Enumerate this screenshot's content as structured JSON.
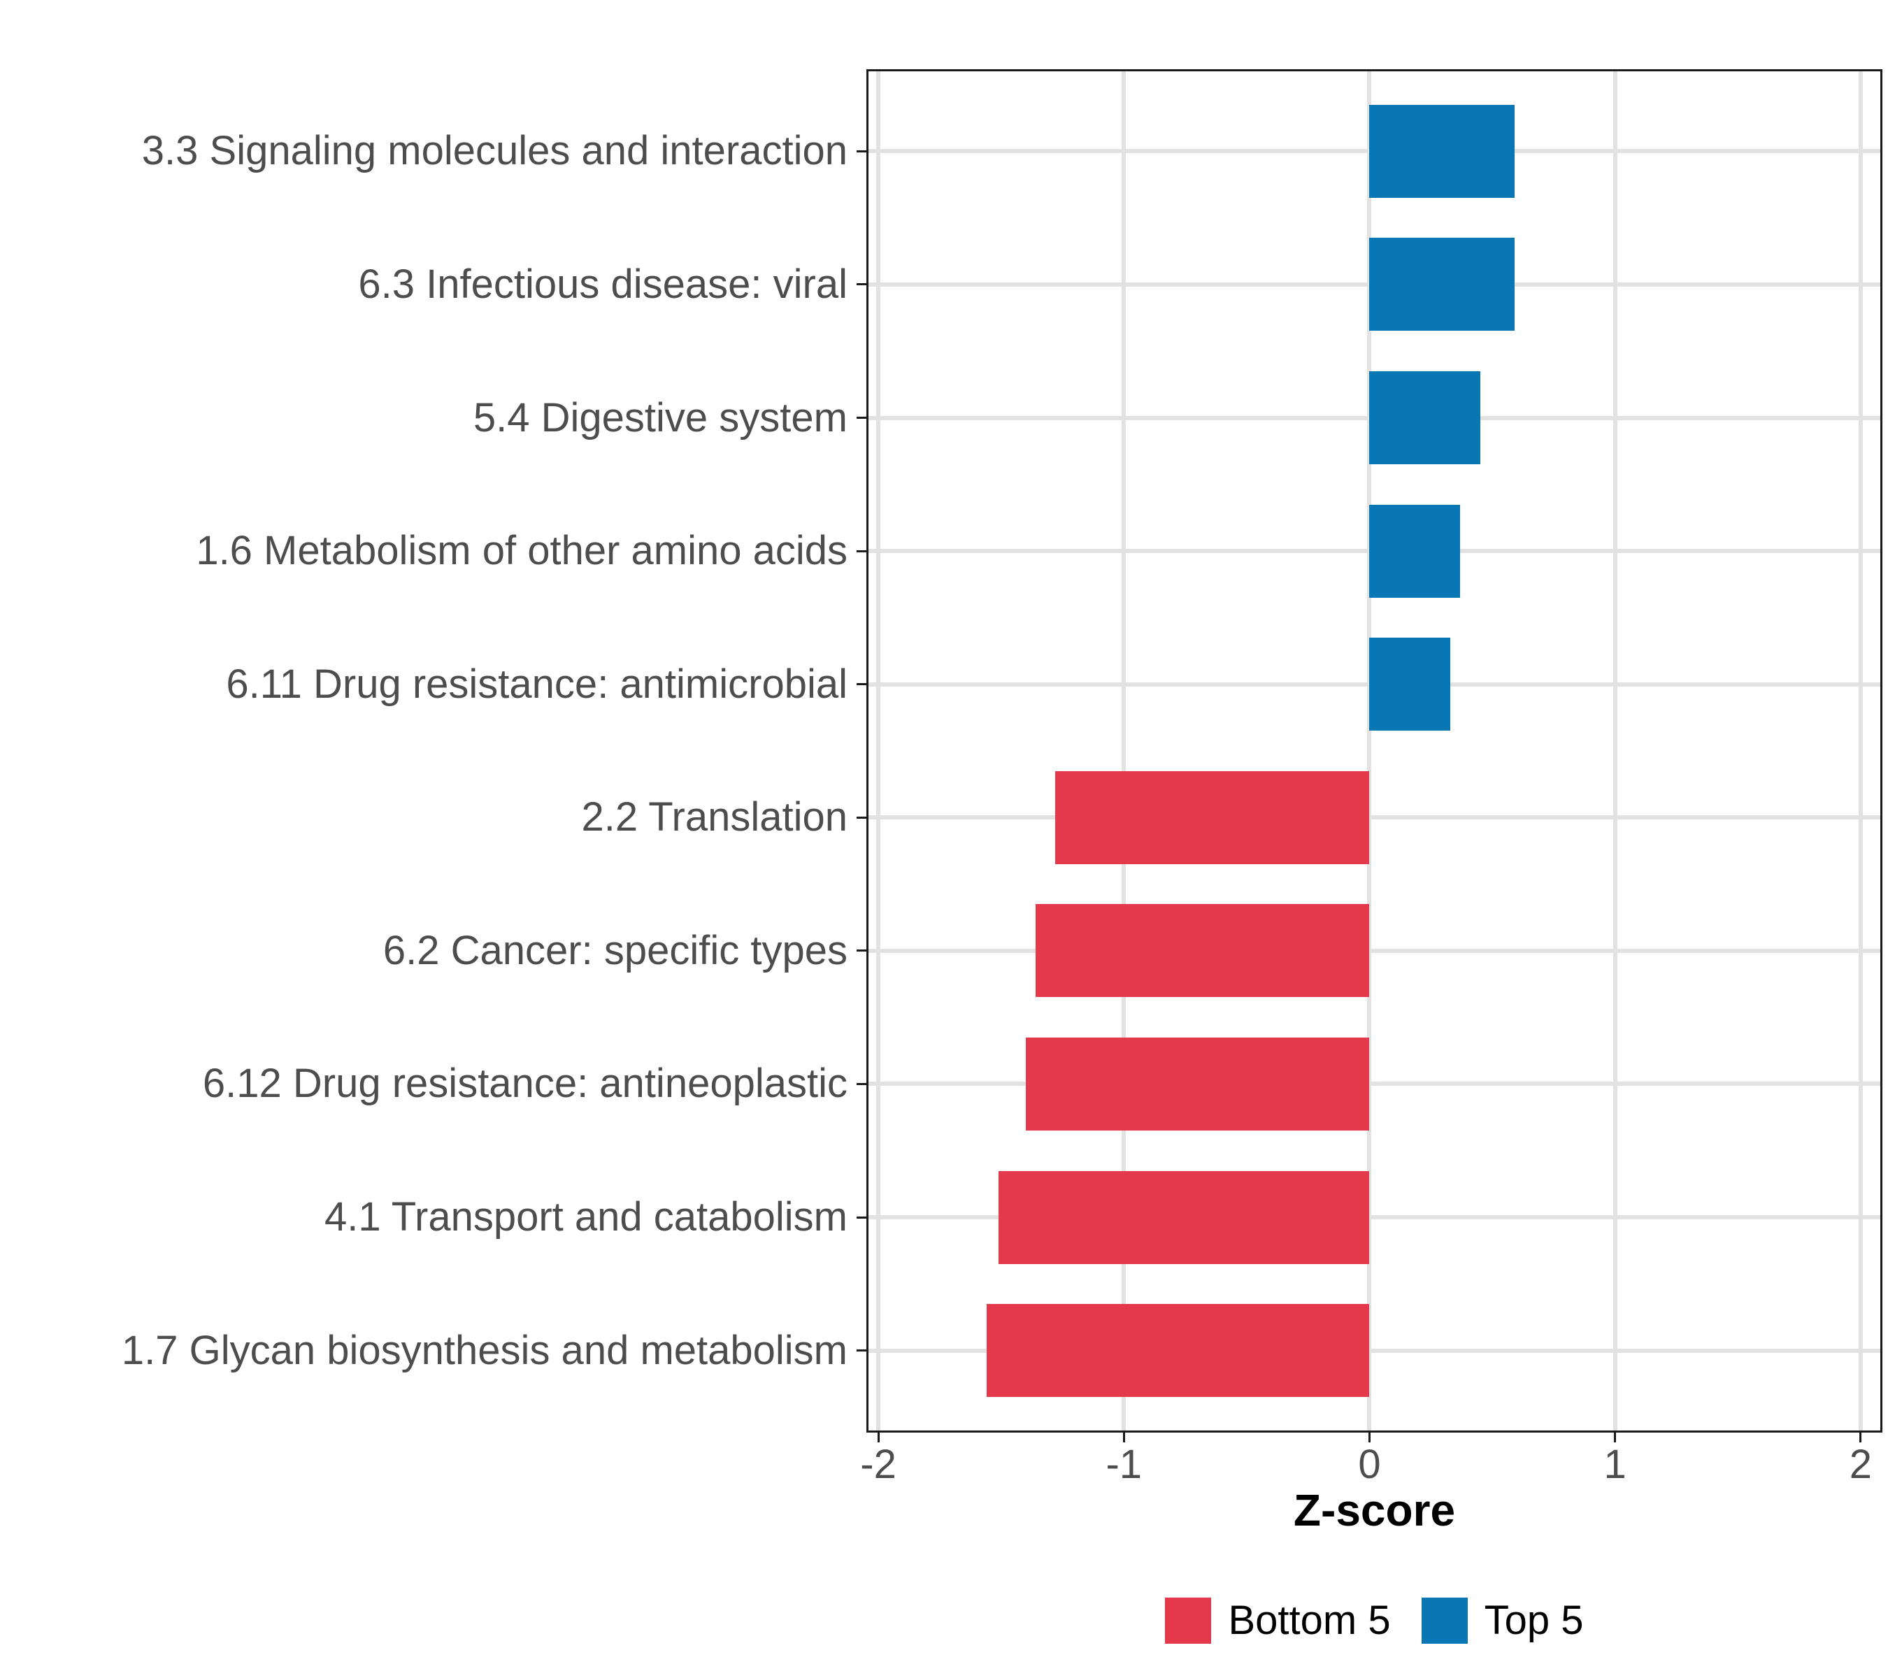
{
  "chart_data": {
    "type": "bar",
    "orientation": "horizontal",
    "title": "",
    "xlabel": "Z-score",
    "x_ticks": [
      -2,
      -1,
      0,
      1,
      2
    ],
    "xlim": [
      -2.04,
      2.08
    ],
    "grid": true,
    "legend_position": "bottom",
    "bars": [
      {
        "label": "3.3 Signaling molecules and interaction",
        "value": 0.59,
        "group": "Top 5"
      },
      {
        "label": "6.3 Infectious disease: viral",
        "value": 0.59,
        "group": "Top 5"
      },
      {
        "label": "5.4 Digestive system",
        "value": 0.45,
        "group": "Top 5"
      },
      {
        "label": "1.6 Metabolism of other amino acids",
        "value": 0.37,
        "group": "Top 5"
      },
      {
        "label": "6.11 Drug resistance: antimicrobial",
        "value": 0.33,
        "group": "Top 5"
      },
      {
        "label": "2.2 Translation",
        "value": -1.28,
        "group": "Bottom 5"
      },
      {
        "label": "6.2 Cancer: specific types",
        "value": -1.36,
        "group": "Bottom 5"
      },
      {
        "label": "6.12 Drug resistance: antineoplastic",
        "value": -1.4,
        "group": "Bottom 5"
      },
      {
        "label": "4.1 Transport and catabolism",
        "value": -1.51,
        "group": "Bottom 5"
      },
      {
        "label": "1.7 Glycan biosynthesis and metabolism",
        "value": -1.56,
        "group": "Bottom 5"
      }
    ],
    "groups": [
      {
        "name": "Bottom 5",
        "color": "#E4394B"
      },
      {
        "name": "Top 5",
        "color": "#0877B4"
      }
    ]
  },
  "style": {
    "background": "#FFFFFF",
    "grid_color": "#E2E2E2",
    "axis_text_color": "#4D4D4D",
    "axis_line_color": "#1A1A1A",
    "bottom5_color": "#E4394B",
    "top5_color": "#0877B4"
  }
}
